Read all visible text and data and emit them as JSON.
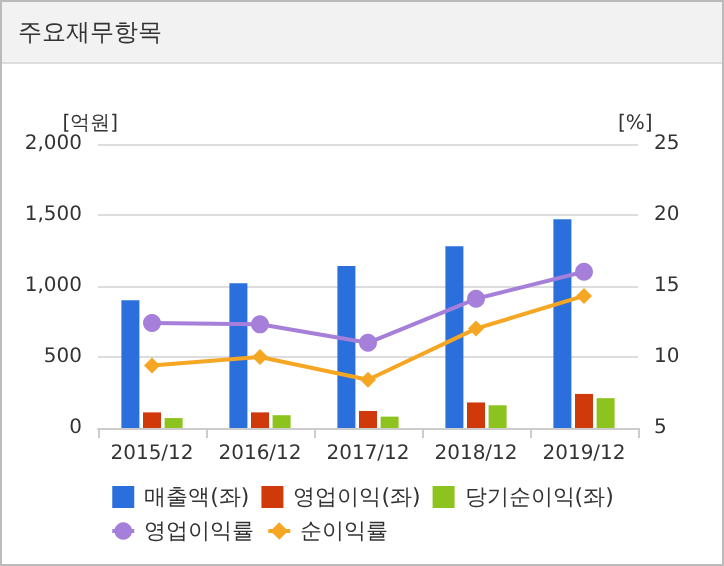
{
  "chart_data": {
    "type": "bar",
    "title": "주요재무항목",
    "ylabel": "[억원]",
    "y2label": "[%]",
    "categories": [
      "2015/12",
      "2016/12",
      "2017/12",
      "2018/12",
      "2019/12"
    ],
    "series": [
      {
        "name": "매출액(좌)",
        "color": "#2a6fdb",
        "values": [
          900,
          1020,
          1140,
          1280,
          1470
        ]
      },
      {
        "name": "영업이익(좌)",
        "color": "#d03a0a",
        "values": [
          110,
          110,
          120,
          180,
          240
        ]
      },
      {
        "name": "당기순이익(좌)",
        "color": "#8cc31e",
        "values": [
          70,
          90,
          80,
          160,
          210
        ]
      },
      {
        "name": "영업이익률",
        "type": "line",
        "axis": "y2",
        "marker": "circle",
        "color": "#a57fd9",
        "values": [
          12.4,
          12.3,
          11.0,
          14.1,
          16.0
        ]
      },
      {
        "name": "순이익률",
        "type": "line",
        "axis": "y2",
        "marker": "diamond",
        "color": "#f5a623",
        "values": [
          9.4,
          10.0,
          8.4,
          12.0,
          14.3
        ]
      }
    ],
    "ylim": [
      0,
      2000
    ],
    "yticks": [
      0,
      500,
      {
        "value": 1000,
        "label": "1,000"
      },
      {
        "value": 1500,
        "label": "1,500"
      },
      {
        "value": 2000,
        "label": "2,000"
      }
    ],
    "y2lim": [
      5,
      25
    ],
    "y2ticks": [
      5,
      10,
      15,
      20,
      25
    ],
    "grid": "y",
    "legend": "bottom"
  }
}
